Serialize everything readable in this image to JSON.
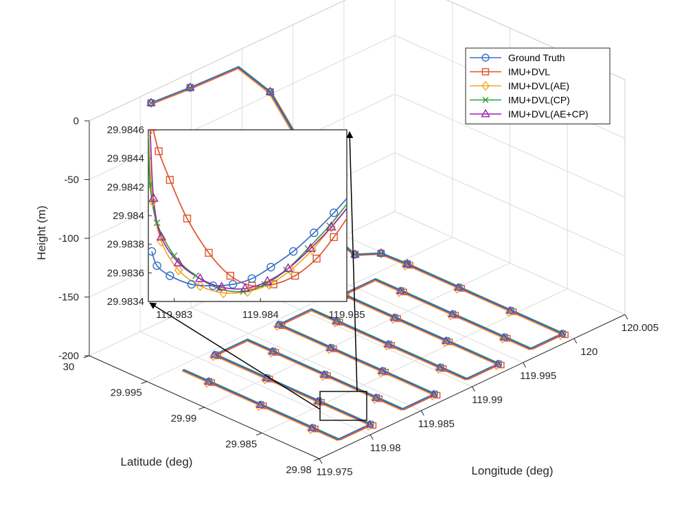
{
  "chart_data": {
    "type": "line3d",
    "title": "",
    "xlabel": "Longitude (deg)",
    "ylabel": "Latitude (deg)",
    "zlabel": "Height (m)",
    "xlim": [
      119.975,
      120.005
    ],
    "ylim": [
      29.98,
      30
    ],
    "zlim": [
      -200,
      0
    ],
    "x_ticks": [
      "119.975",
      "119.98",
      "119.985",
      "119.99",
      "119.995",
      "120",
      "120.005"
    ],
    "y_ticks": [
      "29.98",
      "29.985",
      "29.99",
      "29.995",
      "30"
    ],
    "z_ticks": [
      "0",
      "-50",
      "-100",
      "-150",
      "-200"
    ],
    "grid": true,
    "legend_position": "top-right",
    "series": [
      {
        "name": "Ground Truth",
        "color": "#3A6FC4",
        "marker": "circle"
      },
      {
        "name": "IMU+DVL",
        "color": "#E0502A",
        "marker": "square"
      },
      {
        "name": "IMU+DVL(AE)",
        "color": "#F5A623",
        "marker": "diamond"
      },
      {
        "name": "IMU+DVL(CP)",
        "color": "#2E9E3A",
        "marker": "x"
      },
      {
        "name": "IMU+DVL(AE+CP)",
        "color": "#9B1FB0",
        "marker": "triangle"
      }
    ],
    "main_path": {
      "descent_profile": [
        {
          "lon": 119.9805,
          "lat": 29.9995,
          "height": -5
        },
        {
          "lon": 119.984,
          "lat": 29.9992,
          "height": -5
        },
        {
          "lon": 119.9885,
          "lat": 29.999,
          "height": -5
        },
        {
          "lon": 119.9905,
          "lat": 29.998,
          "height": -30
        },
        {
          "lon": 119.9925,
          "lat": 29.997,
          "height": -80
        },
        {
          "lon": 119.994,
          "lat": 29.996,
          "height": -155
        },
        {
          "lon": 119.996,
          "lat": 29.9955,
          "height": -180
        },
        {
          "lon": 119.998,
          "lat": 29.995,
          "height": -185
        },
        {
          "lon": 120.0,
          "lat": 29.9945,
          "height": -200
        }
      ],
      "lawnmower": {
        "height": -200,
        "turn_count": 7,
        "lon_range": [
          119.978,
          120.0
        ],
        "lat_range": [
          29.981,
          29.9945
        ]
      }
    },
    "inset": {
      "xlim": [
        119.9827,
        119.985
      ],
      "ylim": [
        29.9834,
        29.9846
      ],
      "x_ticks": [
        "119.983",
        "119.984",
        "119.985"
      ],
      "y_ticks": [
        "29.9846",
        "29.9844",
        "29.9842",
        "29.984",
        "29.9838",
        "29.9836",
        "29.9834"
      ],
      "series": [
        {
          "name": "Ground Truth",
          "x": [
            119.98274,
            119.9828,
            119.98295,
            119.9832,
            119.98345,
            119.98368,
            119.9839,
            119.98412,
            119.98438,
            119.98462,
            119.98485,
            119.985
          ],
          "y": [
            29.98375,
            29.98365,
            29.98358,
            29.98352,
            29.98351,
            29.98352,
            29.98356,
            29.98364,
            29.98375,
            29.98388,
            29.98402,
            29.98412
          ]
        },
        {
          "name": "IMU+DVL",
          "x": [
            119.98275,
            119.98282,
            119.98295,
            119.98315,
            119.9834,
            119.98365,
            119.9839,
            119.98415,
            119.9844,
            119.98465,
            119.98485,
            119.985
          ],
          "y": [
            29.98462,
            29.98445,
            29.98425,
            29.98398,
            29.98374,
            29.98358,
            29.98351,
            29.98352,
            29.98358,
            29.9837,
            29.98385,
            29.98398
          ]
        },
        {
          "name": "IMU+DVL(AE)",
          "x": [
            119.9827,
            119.98275,
            119.98285,
            119.98305,
            119.9833,
            119.98357,
            119.98385,
            119.9841,
            119.98435,
            119.9846,
            119.98482,
            119.985
          ],
          "y": [
            29.98458,
            29.9841,
            29.98382,
            29.98362,
            29.98351,
            29.98346,
            29.98347,
            29.98352,
            29.98362,
            29.98376,
            29.98392,
            29.98405
          ]
        },
        {
          "name": "IMU+DVL(CP)",
          "x": [
            119.9827,
            119.98272,
            119.9828,
            119.983,
            119.98325,
            119.98352,
            119.9838,
            119.98405,
            119.9843,
            119.98455,
            119.9848,
            119.985
          ],
          "y": [
            29.98462,
            29.98422,
            29.98395,
            29.98372,
            29.98358,
            29.98349,
            29.98347,
            29.98352,
            29.98362,
            29.98377,
            29.98393,
            29.98408
          ]
        },
        {
          "name": "IMU+DVL(AE+CP)",
          "x": [
            119.98272,
            119.98276,
            119.98285,
            119.98305,
            119.9833,
            119.98355,
            119.98382,
            119.98408,
            119.98432,
            119.98458,
            119.98482,
            119.985
          ],
          "y": [
            29.98462,
            29.98412,
            29.98385,
            29.98367,
            29.98356,
            29.9835,
            29.98349,
            29.98354,
            29.98363,
            29.98377,
            29.98392,
            29.98405
          ]
        }
      ]
    }
  }
}
